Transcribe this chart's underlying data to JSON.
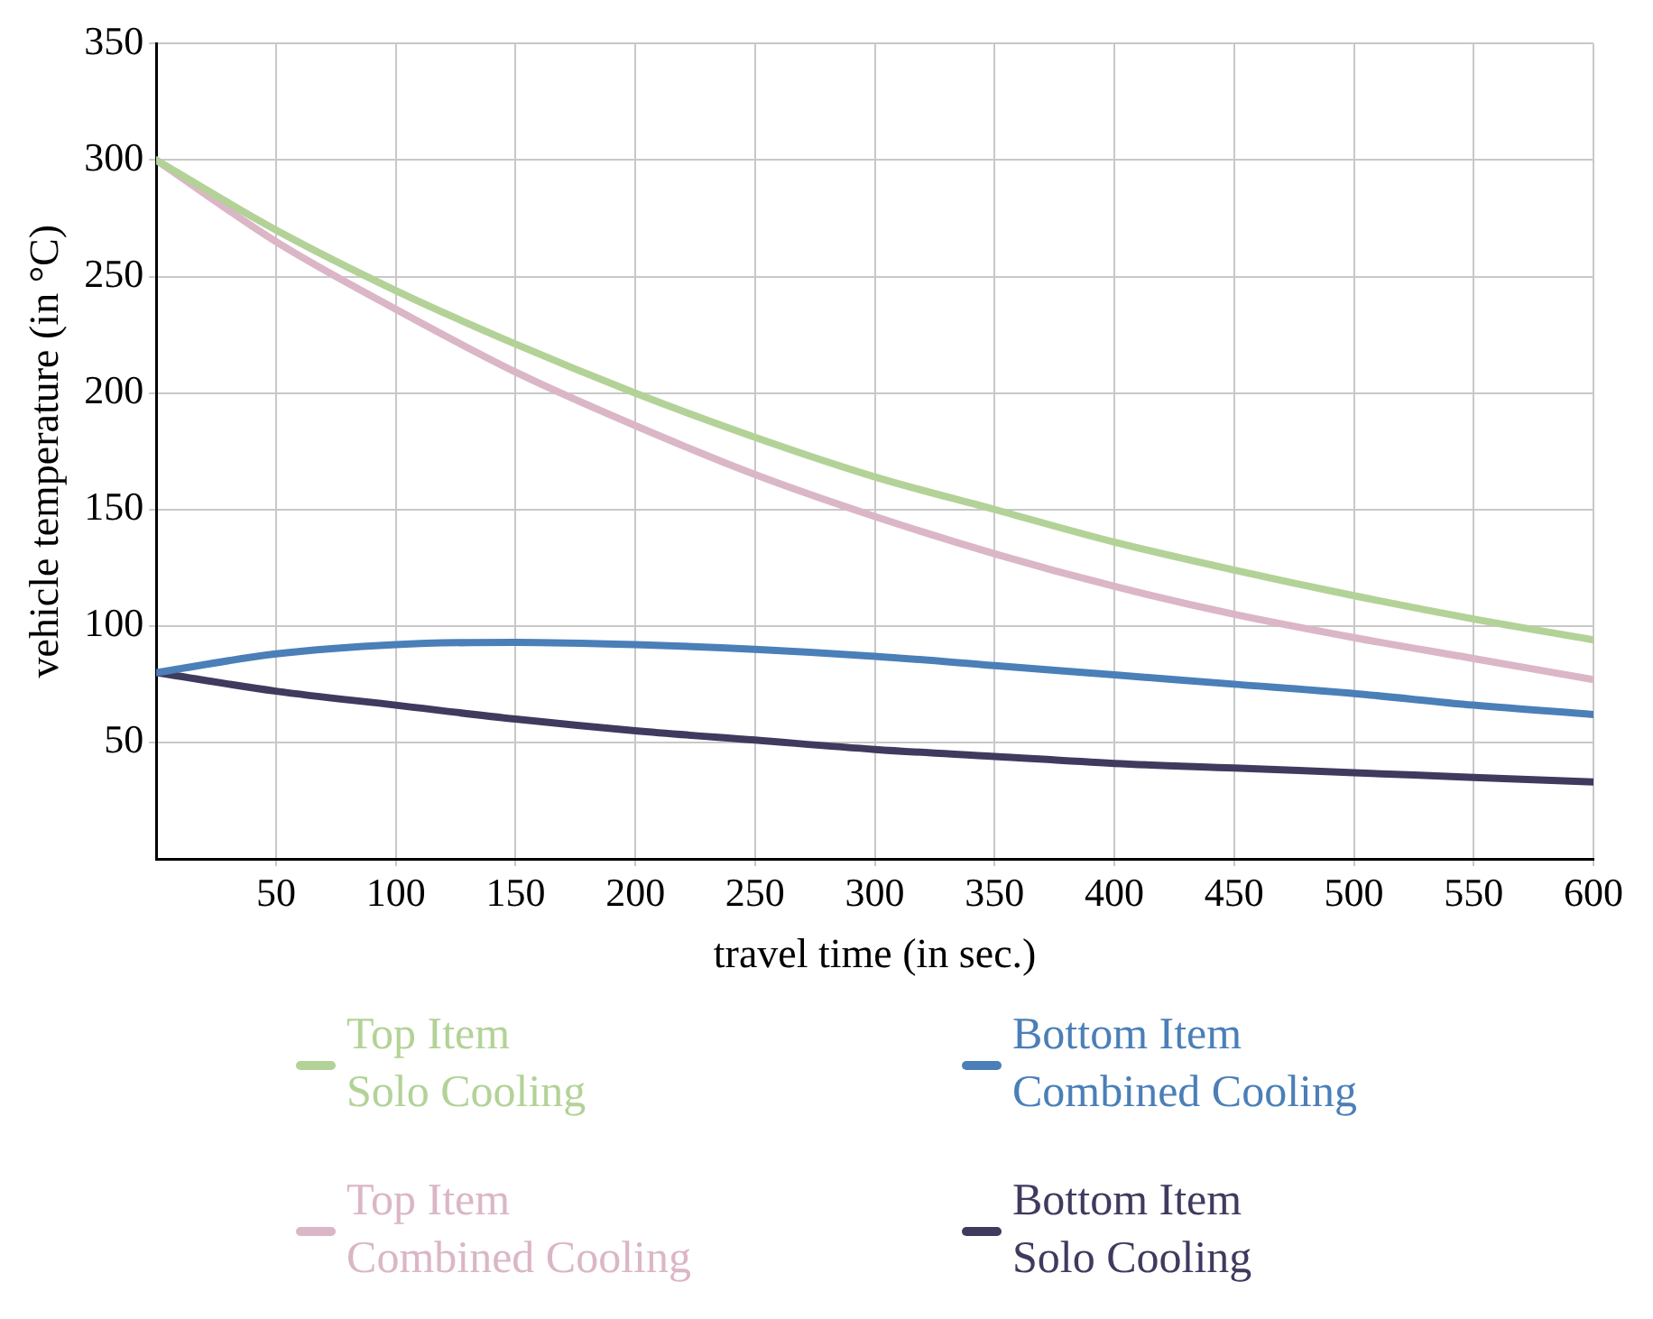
{
  "chart_data": {
    "type": "line",
    "xlabel": "travel time (in sec.)",
    "ylabel": "vehicle temperature (in °C)",
    "x": [
      0,
      50,
      100,
      150,
      200,
      250,
      300,
      350,
      400,
      450,
      500,
      550,
      600
    ],
    "series": [
      {
        "name": "Top Item Solo Cooling",
        "color": "#b3d297",
        "values": [
          300,
          270,
          244,
          221,
          200,
          181,
          164,
          150,
          136,
          124,
          113,
          103,
          94
        ]
      },
      {
        "name": "Top Item Combined Cooling",
        "color": "#dbb6c6",
        "values": [
          300,
          265,
          236,
          209,
          186,
          165,
          147,
          131,
          117,
          105,
          95,
          86,
          77
        ]
      },
      {
        "name": "Bottom Item Combined Cooling",
        "color": "#4a7fb8",
        "values": [
          80,
          88,
          92,
          93,
          92,
          90,
          87,
          83,
          79,
          75,
          71,
          66,
          62
        ]
      },
      {
        "name": "Bottom Item Solo Cooling",
        "color": "#3f3a5e",
        "values": [
          80,
          72,
          66,
          60,
          55,
          51,
          47,
          44,
          41,
          39,
          37,
          35,
          33
        ]
      }
    ],
    "xlim": [
      0,
      600
    ],
    "xticks": [
      50,
      100,
      150,
      200,
      250,
      300,
      350,
      400,
      450,
      500,
      550,
      600
    ],
    "ylim": [
      0,
      350
    ],
    "yticks": [
      50,
      100,
      150,
      200,
      250,
      300,
      350
    ],
    "grid": true,
    "legend": "bottom",
    "marker": "none",
    "line_style": "solid"
  }
}
